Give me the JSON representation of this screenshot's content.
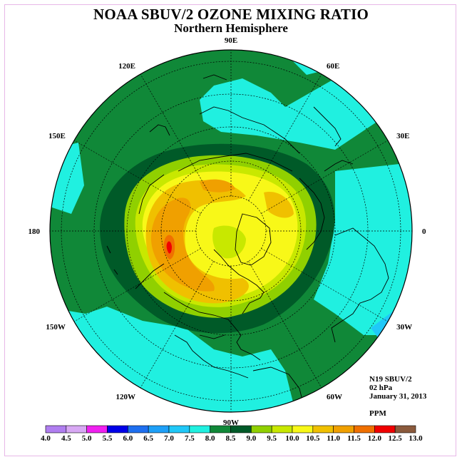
{
  "title": "NOAA SBUV/2 OZONE MIXING RATIO",
  "subtitle": "Northern Hemisphere",
  "info": {
    "instrument": "N19 SBUV/2",
    "level": "02 hPa",
    "date": "January 31, 2013",
    "units": "PPM"
  },
  "longitude_labels": [
    {
      "text": "90E",
      "angle": -90
    },
    {
      "text": "60E",
      "angle": -60
    },
    {
      "text": "30E",
      "angle": -30
    },
    {
      "text": "0",
      "angle": 0
    },
    {
      "text": "30W",
      "angle": 30
    },
    {
      "text": "60W",
      "angle": 60
    },
    {
      "text": "90W",
      "angle": 90
    },
    {
      "text": "120W",
      "angle": 120
    },
    {
      "text": "150W",
      "angle": 150
    },
    {
      "text": "180",
      "angle": 180
    },
    {
      "text": "150E",
      "angle": 210
    },
    {
      "text": "120E",
      "angle": 240
    }
  ],
  "colorbar": {
    "ticks": [
      "4.0",
      "4.5",
      "5.0",
      "5.5",
      "6.0",
      "6.5",
      "7.0",
      "7.5",
      "8.0",
      "8.5",
      "9.0",
      "9.5",
      "10.0",
      "10.5",
      "11.0",
      "11.5",
      "12.0",
      "12.5",
      "13.0"
    ],
    "colors": [
      "#b07ef0",
      "#d8a8f4",
      "#f020f0",
      "#0000e8",
      "#1e6ff0",
      "#1ea0f8",
      "#20c8f8",
      "#20f0e0",
      "#108838",
      "#005a28",
      "#90d000",
      "#c8e800",
      "#f8f818",
      "#f0c000",
      "#f0a000",
      "#f07000",
      "#f00000",
      "#8b5a3c"
    ]
  }
}
